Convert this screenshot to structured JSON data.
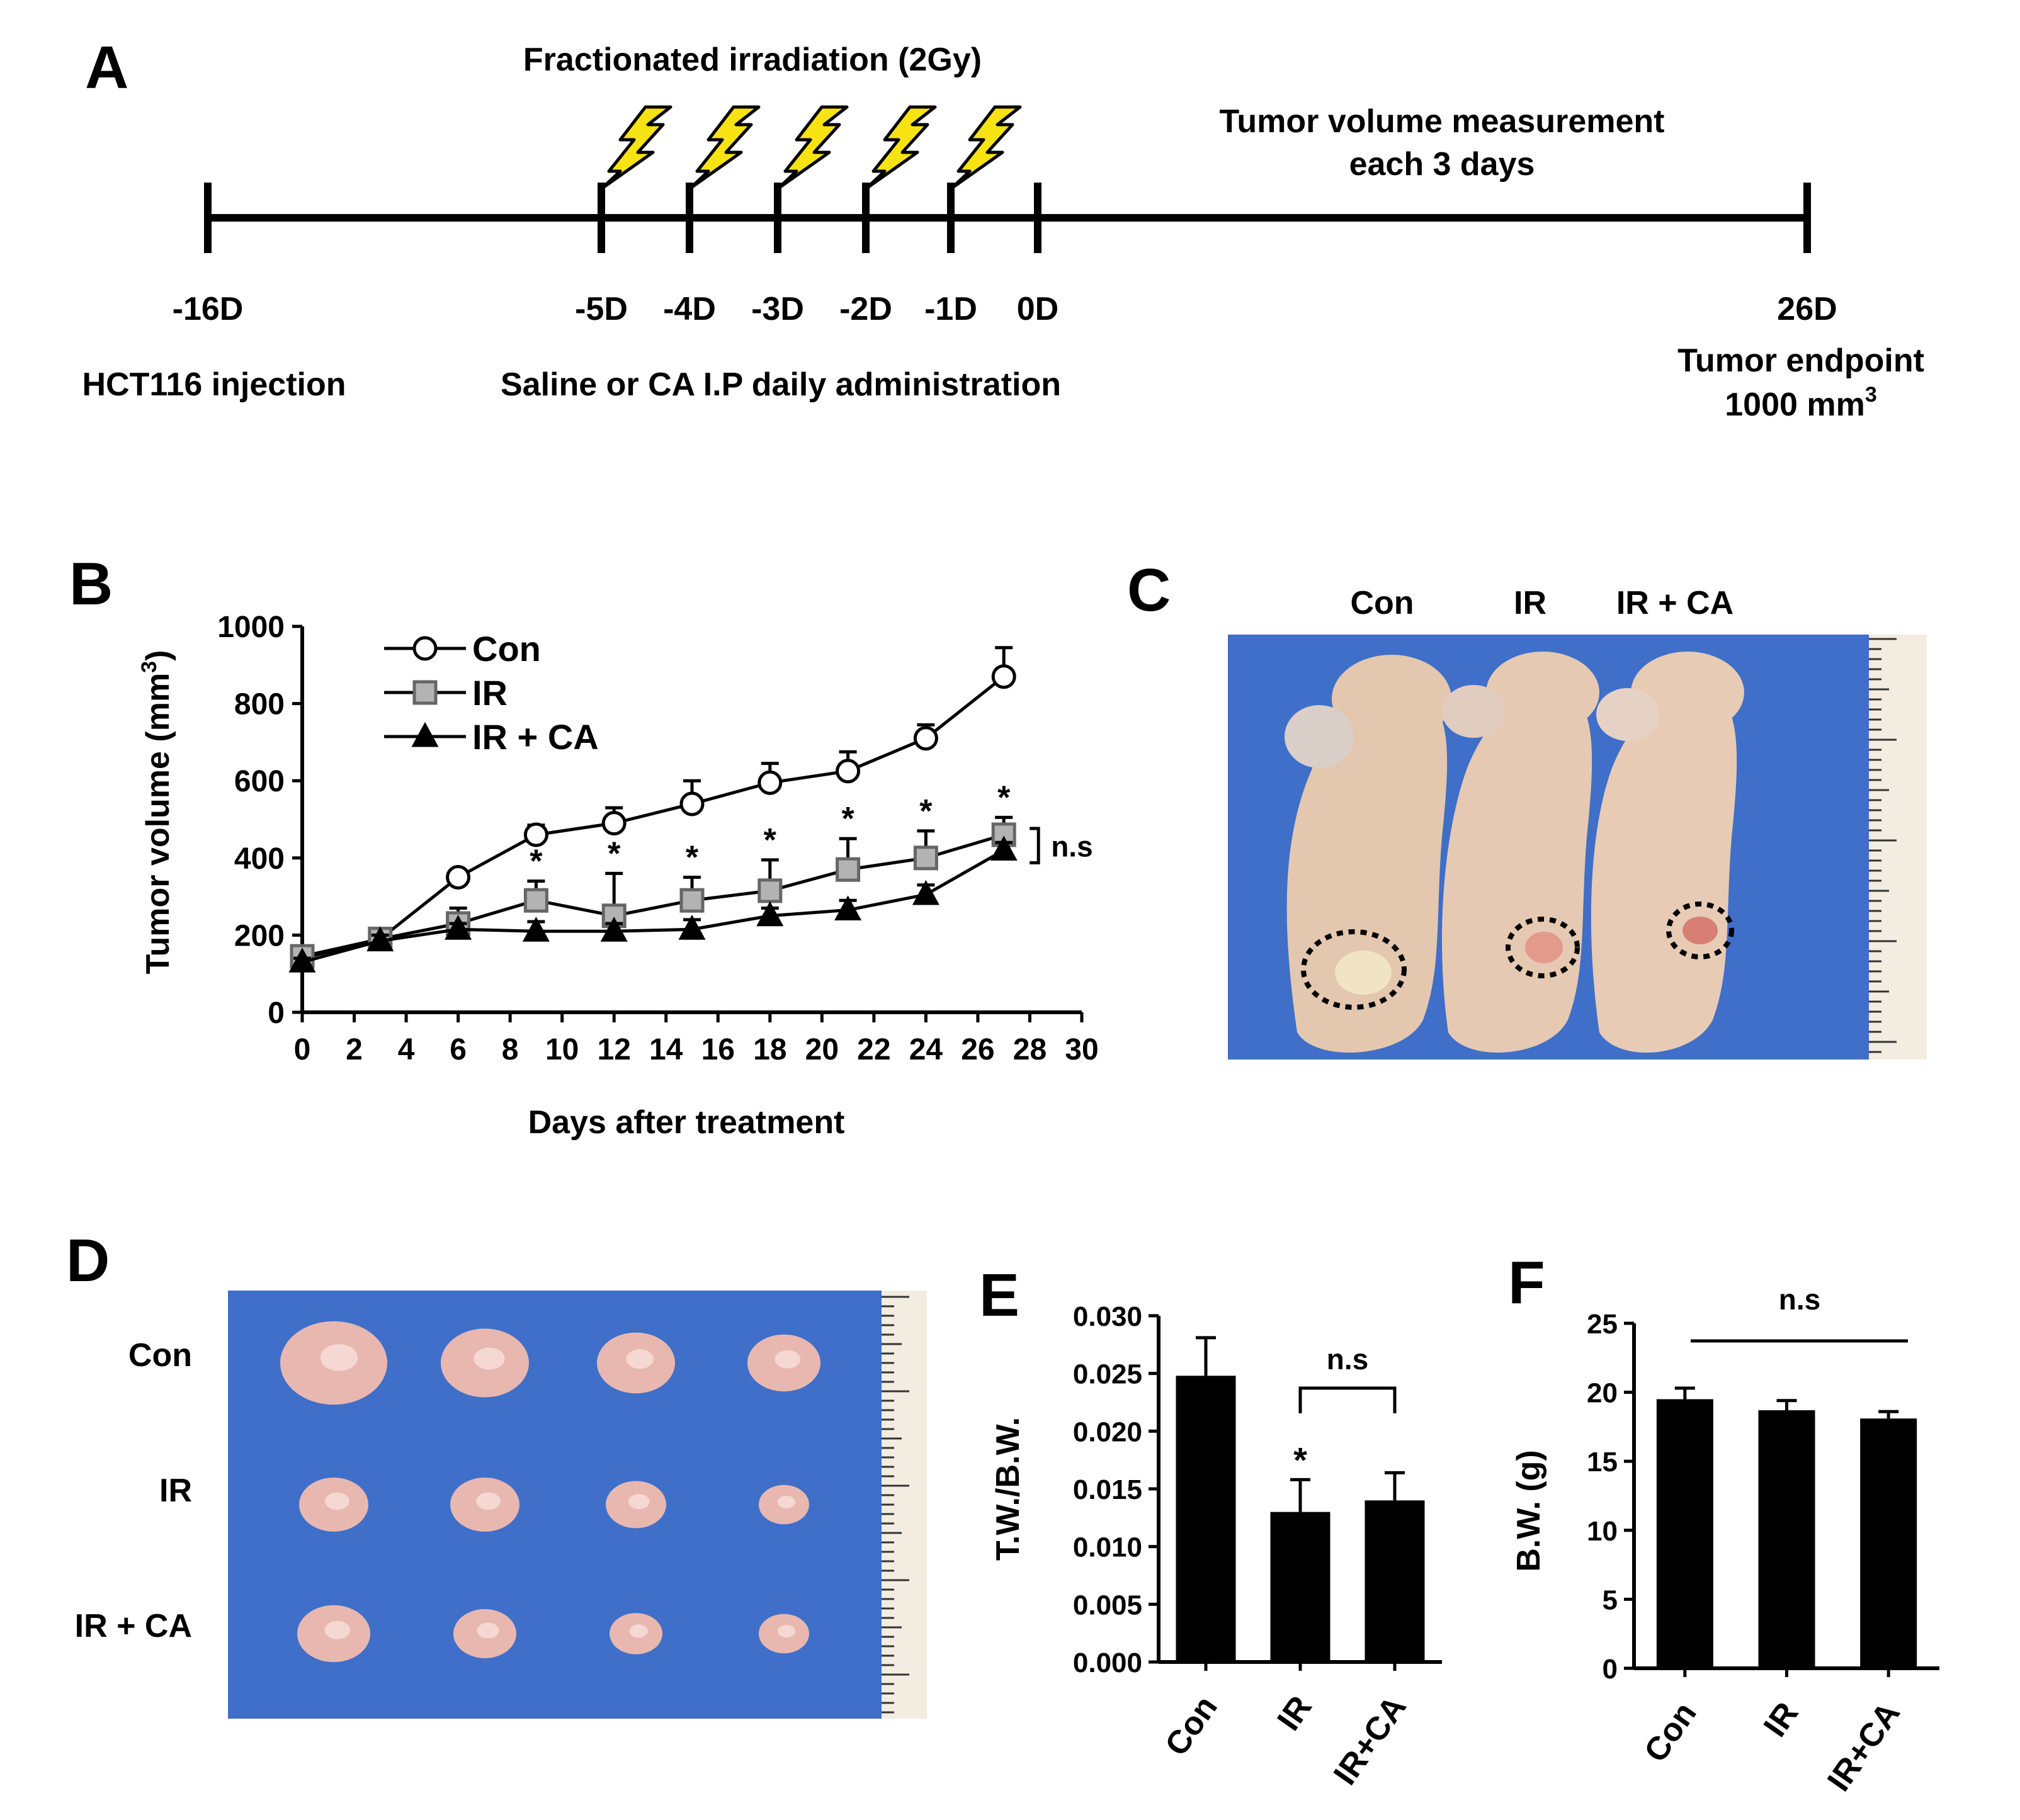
{
  "panel_labels": {
    "a": "A",
    "b": "B",
    "c": "C",
    "d": "D",
    "e": "E",
    "f": "F"
  },
  "timeline": {
    "irradiation_label": "Fractionated irradiation (2Gy)",
    "measurement_line1": "Tumor volume measurement",
    "measurement_line2": "each 3 days",
    "ticks": [
      "-16D",
      "-5D",
      "-4D",
      "-3D",
      "-2D",
      "-1D",
      "0D",
      "26D"
    ],
    "injection_label": "HCT116 injection",
    "administration_label": "Saline or CA I.P daily administration",
    "endpoint_line1": "Tumor endpoint",
    "endpoint_line2_value": "1000 mm",
    "endpoint_line2_sup": "3"
  },
  "photo_c": {
    "labels": [
      "Con",
      "IR",
      "IR + CA"
    ]
  },
  "photo_d": {
    "row_labels": [
      "Con",
      "IR",
      "IR + CA"
    ]
  },
  "colors": {
    "ink": "#000000",
    "gray_marker": "#b3b3b3",
    "photo_blue": "#3f6fc8",
    "tumor": "#e8b8b0",
    "skin": "#e3bfa6",
    "bolt": "#f7e214"
  },
  "chart_data": [
    {
      "type": "line",
      "panel": "B",
      "xlabel": "Days after treatment",
      "ylabel_text": "Tumor volume (mm",
      "ylabel_sup": "3",
      "ylabel_close": ")",
      "xlim": [
        0,
        30
      ],
      "ylim": [
        0,
        1000
      ],
      "xticks": [
        "0",
        "2",
        "4",
        "6",
        "8",
        "10",
        "12",
        "14",
        "16",
        "18",
        "20",
        "22",
        "24",
        "26",
        "28",
        "30"
      ],
      "yticks": [
        "0",
        "200",
        "400",
        "600",
        "800",
        "1000"
      ],
      "x": [
        0,
        3,
        6,
        9,
        12,
        15,
        18,
        21,
        24,
        27
      ],
      "series": [
        {
          "name": "Con",
          "marker": "circle-open",
          "values": [
            140,
            190,
            350,
            460,
            490,
            540,
            595,
            625,
            710,
            870
          ],
          "errors": [
            10,
            15,
            10,
            25,
            40,
            60,
            50,
            50,
            35,
            75
          ]
        },
        {
          "name": "IR",
          "marker": "square-gray",
          "values": [
            145,
            190,
            230,
            290,
            250,
            290,
            315,
            370,
            400,
            460
          ],
          "errors": [
            10,
            15,
            40,
            50,
            110,
            60,
            80,
            80,
            70,
            45
          ]
        },
        {
          "name": "IR + CA",
          "marker": "triangle-filled",
          "values": [
            130,
            185,
            215,
            210,
            210,
            215,
            250,
            265,
            305,
            420
          ],
          "errors": [
            10,
            15,
            15,
            25,
            20,
            25,
            20,
            25,
            25,
            20
          ]
        }
      ],
      "significance_marker": "*",
      "significance_x": [
        9,
        12,
        15,
        18,
        21,
        24,
        27
      ],
      "bracket_label": "n.s",
      "legend_position": "top-left"
    },
    {
      "type": "bar",
      "panel": "E",
      "categories": [
        "Con",
        "IR",
        "IR+CA"
      ],
      "values": [
        0.0248,
        0.013,
        0.014
      ],
      "errors": [
        0.0033,
        0.0028,
        0.0024
      ],
      "ylabel": "T.W./B.W.",
      "ylim": [
        0,
        0.03
      ],
      "yticks": [
        "0.000",
        "0.005",
        "0.010",
        "0.015",
        "0.020",
        "0.025",
        "0.030"
      ],
      "significance_marker": "*",
      "bracket_label": "n.s"
    },
    {
      "type": "bar",
      "panel": "F",
      "categories": [
        "Con",
        "IR",
        "IR+CA"
      ],
      "values": [
        19.5,
        18.7,
        18.1
      ],
      "errors": [
        0.8,
        0.7,
        0.5
      ],
      "ylabel": "B.W. (g)",
      "ylim": [
        0,
        25
      ],
      "yticks": [
        "0",
        "5",
        "10",
        "15",
        "20",
        "25"
      ],
      "bracket_label": "n.s"
    }
  ]
}
